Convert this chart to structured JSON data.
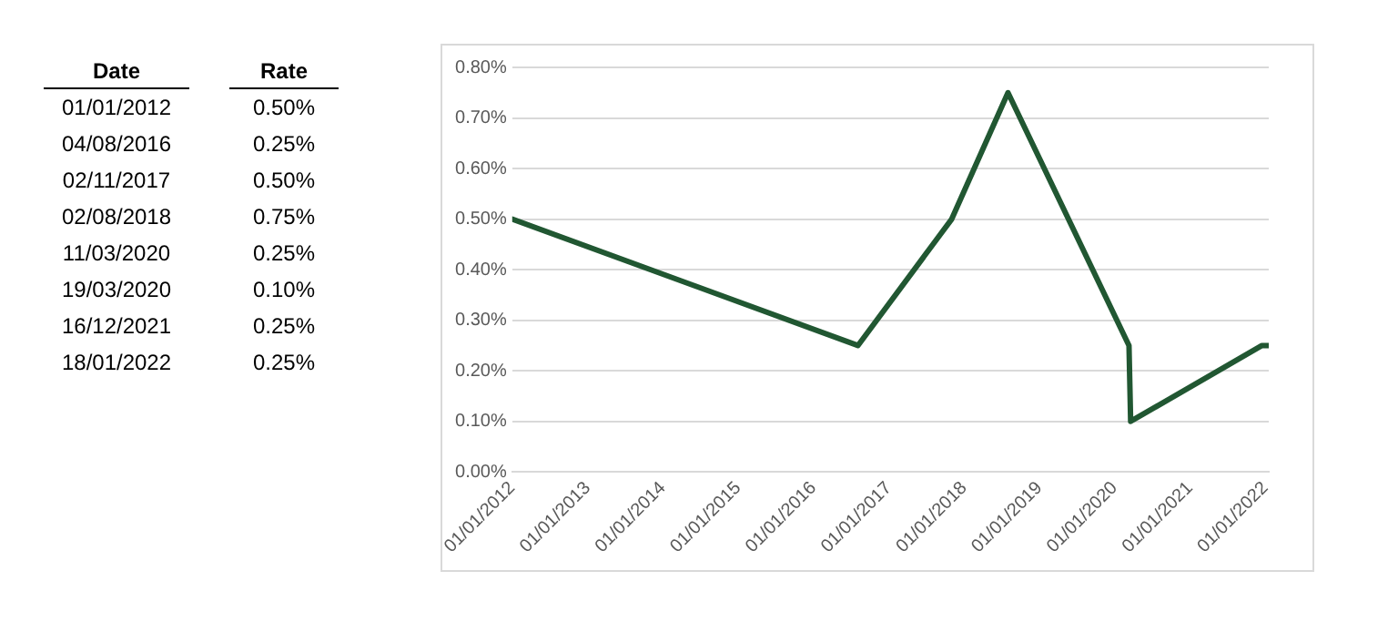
{
  "chart_data": {
    "type": "line",
    "x": [
      "2012-01-01",
      "2016-08-04",
      "2017-11-02",
      "2018-08-02",
      "2020-03-11",
      "2020-03-19",
      "2021-12-16",
      "2022-01-18"
    ],
    "series": [
      {
        "color": "#215732",
        "values": [
          0.5,
          0.25,
          0.5,
          0.75,
          0.25,
          0.1,
          0.25,
          0.25
        ]
      }
    ],
    "annotations": [
      "Date",
      "Rate",
      "01/01/2012",
      "0.50%",
      "04/08/2016",
      "0.25%",
      "02/11/2017",
      "0.50%",
      "02/08/2018",
      "0.75%",
      "11/03/2020",
      "0.25%",
      "19/03/2020",
      "0.10%",
      "16/12/2021",
      "0.25%",
      "18/01/2022",
      "0.25%"
    ],
    "xlim": [
      "2012-01-01",
      "2022-01-18"
    ],
    "xticks": [
      {
        "value": "2012-01-01",
        "label": "01/01/2012"
      },
      {
        "value": "2013-01-01",
        "label": "01/01/2013"
      },
      {
        "value": "2014-01-01",
        "label": "01/01/2014"
      },
      {
        "value": "2015-01-01",
        "label": "01/01/2015"
      },
      {
        "value": "2016-01-01",
        "label": "01/01/2016"
      },
      {
        "value": "2017-01-01",
        "label": "01/01/2017"
      },
      {
        "value": "2018-01-01",
        "label": "01/01/2018"
      },
      {
        "value": "2019-01-01",
        "label": "01/01/2019"
      },
      {
        "value": "2020-01-01",
        "label": "01/01/2020"
      },
      {
        "value": "2021-01-01",
        "label": "01/01/2021"
      },
      {
        "value": "2022-01-01",
        "label": "01/01/2022"
      }
    ],
    "ylim": [
      0,
      0.8
    ],
    "yticks": [
      {
        "value": 0,
        "label": "0.00%"
      },
      {
        "value": 0.1,
        "label": "0.10%"
      },
      {
        "value": 0.2,
        "label": "0.20%"
      },
      {
        "value": 0.3,
        "label": "0.30%"
      },
      {
        "value": 0.4,
        "label": "0.40%"
      },
      {
        "value": 0.5,
        "label": "0.50%"
      },
      {
        "value": 0.6,
        "label": "0.60%"
      },
      {
        "value": 0.7,
        "label": "0.70%"
      },
      {
        "value": 0.8,
        "label": "0.80%"
      }
    ],
    "grid": "y",
    "legend": false,
    "marker": "none",
    "line_style": "solid"
  }
}
